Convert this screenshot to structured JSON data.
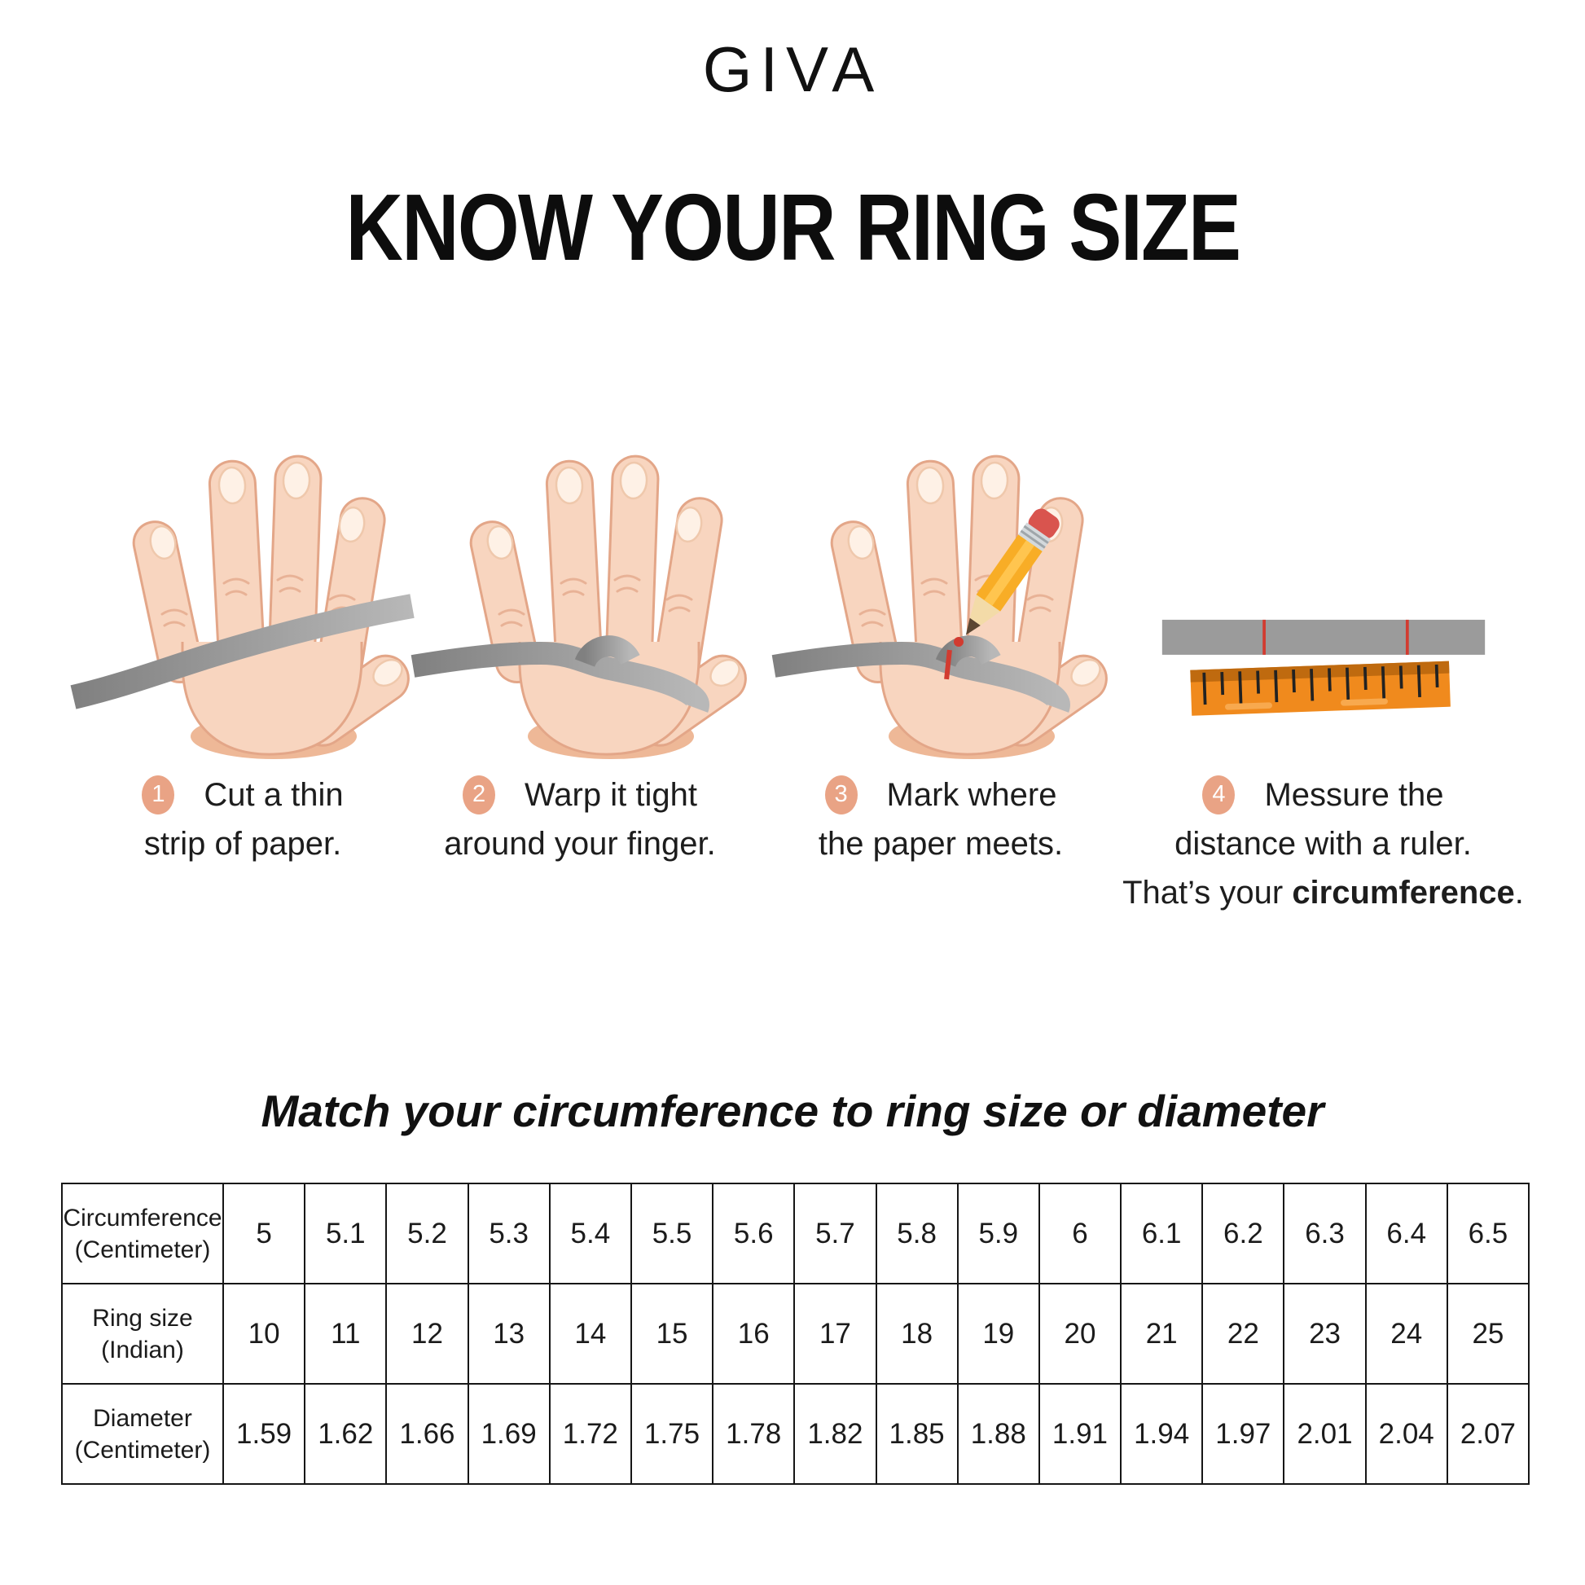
{
  "brand": {
    "logo": "GIVA"
  },
  "title": "KNOW YOUR RING SIZE",
  "steps": [
    {
      "number": "1",
      "lines": [
        "Cut a thin",
        "strip of paper."
      ]
    },
    {
      "number": "2",
      "lines": [
        "Warp it tight",
        "around your finger."
      ]
    },
    {
      "number": "3",
      "lines": [
        "Mark where",
        "the paper meets."
      ]
    },
    {
      "number": "4",
      "lines": [
        "Messure the",
        "distance with a ruler."
      ],
      "line3_prefix": "That’s your ",
      "line3_bold": "circumference",
      "line3_suffix": "."
    }
  ],
  "icons": {
    "step1_illustration": "hand-with-paper-strip-icon",
    "step2_illustration": "hand-strip-wrapped-around-finger-icon",
    "step3_illustration": "hand-strip-pencil-mark-icon",
    "step4_illustration": "paper-strip-and-ruler-icon"
  },
  "table": {
    "title": "Match your circumference to ring size or diameter",
    "rows": [
      {
        "header_line1": "Circumference",
        "header_line2": "(Centimeter)",
        "values": [
          "5",
          "5.1",
          "5.2",
          "5.3",
          "5.4",
          "5.5",
          "5.6",
          "5.7",
          "5.8",
          "5.9",
          "6",
          "6.1",
          "6.2",
          "6.3",
          "6.4",
          "6.5"
        ]
      },
      {
        "header_line1": "Ring size",
        "header_line2": "(Indian)",
        "values": [
          "10",
          "11",
          "12",
          "13",
          "14",
          "15",
          "16",
          "17",
          "18",
          "19",
          "20",
          "21",
          "22",
          "23",
          "24",
          "25"
        ]
      },
      {
        "header_line1": "Diameter",
        "header_line2": "(Centimeter)",
        "values": [
          "1.59",
          "1.62",
          "1.66",
          "1.69",
          "1.72",
          "1.75",
          "1.78",
          "1.82",
          "1.85",
          "1.88",
          "1.91",
          "1.94",
          "1.97",
          "2.01",
          "2.04",
          "2.07"
        ]
      }
    ]
  },
  "colors": {
    "badge_peach": "#E9A385",
    "skin": "#F8D5BF",
    "skin_edge": "#E3A688",
    "skin_shade": "#EEB897",
    "nail": "#FEF1E6",
    "nail_edge": "#EFC8AC",
    "strip_gray_dark": "#808080",
    "strip_gray_light": "#B8B8B8",
    "paper_bar_gray": "#9B9B9B",
    "ruler_orange": "#F08A1D",
    "ruler_orange_dark": "#BF6A0F",
    "mark_red": "#D23B30",
    "pencil_yellow": "#F8AD26",
    "pencil_eraser": "#D9544E",
    "text": "#1B1B1B"
  }
}
